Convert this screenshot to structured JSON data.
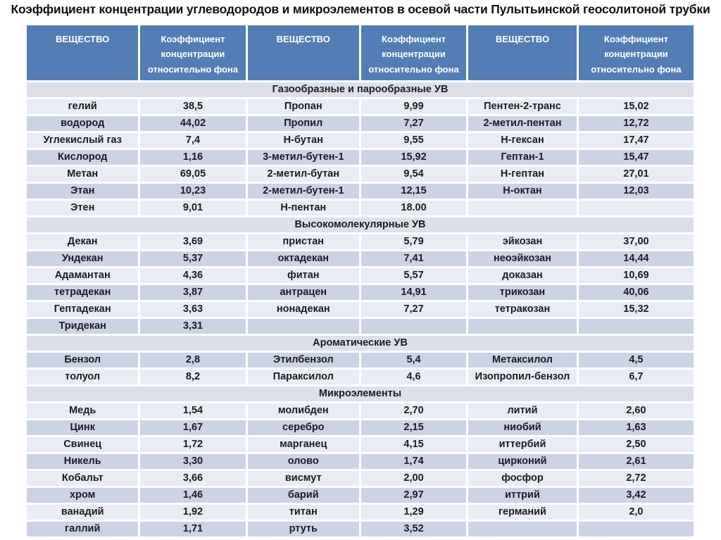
{
  "title": "Коэффициент концентрации углеводородов и микроэлементов в осевой части Пулытьинской геосолитоной трубки",
  "colors": {
    "header_bg": "#527db5",
    "header_text": "#ffffff",
    "row_light": "#e9ecf4",
    "row_dark": "#ccd3e4",
    "section_bg": "#dce0eb",
    "title_text": "#101010"
  },
  "table": {
    "column_headers": [
      "ВЕЩЕСТВО",
      "Коэффициент концентрации относительно фона",
      "ВЕЩЕСТВО",
      "Коэффициент концентрации относительно фона",
      "ВЕЩЕСТВО",
      "Коэффициент концентрации относительно фона"
    ],
    "column_widths_pct": [
      17,
      16,
      17,
      16,
      16.5,
      17.5
    ],
    "sections": [
      {
        "header": "Газообразные и парообразные УВ",
        "start_shade": "light",
        "rows": [
          [
            "гелий",
            "38,5",
            "Пропан",
            "9,99",
            "Пентен-2-транс",
            "15,02"
          ],
          [
            "водород",
            "44,02",
            "Пропил",
            "7,27",
            "2-метил-пентан",
            "12,72"
          ],
          [
            "Углекислый газ",
            "7,4",
            "Н-бутан",
            "9,55",
            "Н-гексан",
            "17,47"
          ],
          [
            "Кислород",
            "1,16",
            "3-метил-бутен-1",
            "15,92",
            "Гептан-1",
            "15,47"
          ],
          [
            "Метан",
            "69,05",
            "2-метил-бутан",
            "9,54",
            "Н-гептан",
            "27,01"
          ],
          [
            "Этан",
            "10,23",
            "2-метил-бутен-1",
            "12,15",
            "Н-октан",
            "12,03"
          ],
          [
            "Этен",
            "9,01",
            "Н-пентан",
            "18.00",
            "",
            ""
          ]
        ]
      },
      {
        "header": "Высокомолекулярные УВ",
        "start_shade": "light",
        "rows": [
          [
            "Декан",
            "3,69",
            "пристан",
            "5,79",
            "эйкозан",
            "37,00"
          ],
          [
            "Ундекан",
            "5,37",
            "октадекан",
            "7,41",
            "неоэйкозан",
            "14,44"
          ],
          [
            "Адамантан",
            "4,36",
            "фитан",
            "5,57",
            "доказан",
            "10,69"
          ],
          [
            "тетрадекан",
            "3,87",
            "антрацен",
            "14,91",
            "трикозан",
            "40,06"
          ],
          [
            "Гептадекан",
            "3,63",
            "нонадекан",
            "7,27",
            "тетракозан",
            "15,32"
          ],
          [
            "Тридекан",
            "3,31",
            "",
            "",
            "",
            ""
          ]
        ]
      },
      {
        "header": "Ароматические УВ",
        "start_shade": "dark",
        "rows": [
          [
            "Бензол",
            "2,8",
            "Этилбензол",
            "5,4",
            "Метаксилол",
            "4,5"
          ],
          [
            "толуол",
            "8,2",
            "Параксилол",
            "4,6",
            "Изопропил-бензол",
            "6,7"
          ]
        ]
      },
      {
        "header": "Микроэлементы",
        "start_shade": "light",
        "rows": [
          [
            "Медь",
            "1,54",
            "молибден",
            "2,70",
            "литий",
            "2,60"
          ],
          [
            "Цинк",
            "1,67",
            "серебро",
            "2,15",
            "ниобий",
            "1,63"
          ],
          [
            "Свинец",
            "1,72",
            "марганец",
            "4,15",
            "иттербий",
            "2,50"
          ],
          [
            "Никель",
            "3,30",
            "олово",
            "1,74",
            "цирконий",
            "2,61"
          ],
          [
            "Кобальт",
            "3,66",
            "висмут",
            "2,00",
            "фосфор",
            "2,72"
          ],
          [
            "хром",
            "1,46",
            "барий",
            "2,97",
            "иттрий",
            "3,42"
          ],
          [
            "ванадий",
            "1,92",
            "титан",
            "1,29",
            "германий",
            "2,0"
          ],
          [
            "галлий",
            "1,71",
            "ртуть",
            "3,52",
            "",
            ""
          ]
        ]
      }
    ]
  }
}
